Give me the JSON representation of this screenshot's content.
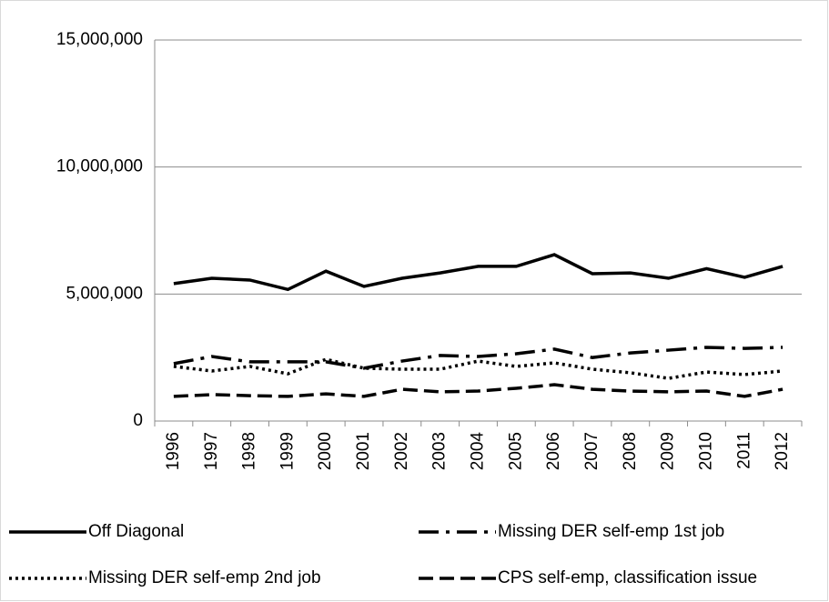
{
  "chart_data": {
    "type": "line",
    "categories": [
      "1996",
      "1997",
      "1998",
      "1999",
      "2000",
      "2001",
      "2002",
      "2003",
      "2004",
      "2005",
      "2006",
      "2007",
      "2008",
      "2009",
      "2010",
      "2011",
      "2012"
    ],
    "series": [
      {
        "name": "Off Diagonal",
        "color": "#000000",
        "dash": "solid",
        "values": [
          5410000,
          5620000,
          5550000,
          5180000,
          5900000,
          5300000,
          5620000,
          5830000,
          6090000,
          6090000,
          6550000,
          5800000,
          5830000,
          5620000,
          6000000,
          5660000,
          6090000
        ]
      },
      {
        "name": "Missing DER self-emp 1st job",
        "color": "#000000",
        "dash": "dash-dot",
        "values": [
          2260000,
          2540000,
          2330000,
          2330000,
          2330000,
          2080000,
          2360000,
          2580000,
          2540000,
          2650000,
          2830000,
          2500000,
          2680000,
          2790000,
          2900000,
          2860000,
          2900000
        ]
      },
      {
        "name": "Missing DER self-emp 2nd job",
        "color": "#000000",
        "dash": "dotted",
        "values": [
          2150000,
          1970000,
          2150000,
          1860000,
          2430000,
          2080000,
          2040000,
          2040000,
          2360000,
          2150000,
          2290000,
          2040000,
          1900000,
          1680000,
          1930000,
          1830000,
          1970000
        ]
      },
      {
        "name": "CPS self-emp, classification issue",
        "color": "#000000",
        "dash": "dashed",
        "values": [
          970000,
          1040000,
          1000000,
          970000,
          1070000,
          970000,
          1250000,
          1150000,
          1180000,
          1290000,
          1430000,
          1250000,
          1180000,
          1150000,
          1180000,
          970000,
          1250000
        ]
      }
    ],
    "ylim": [
      0,
      15000000
    ],
    "yticks": [
      0,
      {
        "value": 5000000,
        "label": "5,000,000"
      },
      {
        "value": 10000000,
        "label": "10,000,000"
      },
      {
        "value": 15000000,
        "label": "15,000,000"
      }
    ],
    "grid": true,
    "legend": "bottom"
  }
}
